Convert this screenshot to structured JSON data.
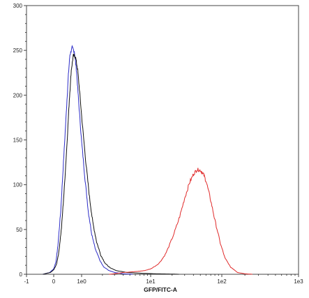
{
  "chart_data": {
    "type": "line",
    "title": "",
    "xlabel": "GFP/FITC-A",
    "ylabel": "",
    "x_scale": "biexponential",
    "xlim": [
      -1,
      1000
    ],
    "ylim": [
      0,
      300
    ],
    "grid": false,
    "x_ticks": [
      {
        "value": -1,
        "label": "-1"
      },
      {
        "value": 0,
        "label": "0"
      },
      {
        "value": 1,
        "label": "1e0"
      },
      {
        "value": 10,
        "label": "1e1"
      },
      {
        "value": 100,
        "label": "1e2"
      },
      {
        "value": 1000,
        "label": "1e3"
      }
    ],
    "y_ticks": [
      0,
      50,
      100,
      150,
      200,
      250,
      300
    ],
    "y_tick_labels": [
      "0",
      "50",
      "100",
      "150",
      "200",
      "250",
      "300"
    ],
    "series": [
      {
        "color": "#2c2cc8",
        "x": [
          -0.4,
          -0.15,
          0,
          0.08,
          0.15,
          0.25,
          0.35,
          0.45,
          0.52,
          0.58,
          0.66,
          0.74,
          0.82,
          0.9,
          1.0,
          1.12,
          1.25,
          1.4,
          1.6,
          1.85,
          2.1,
          2.5,
          3.0,
          4.0,
          5.5
        ],
        "y": [
          0,
          2,
          6,
          14,
          32,
          70,
          125,
          180,
          220,
          245,
          253,
          249,
          226,
          190,
          148,
          106,
          70,
          45,
          27,
          15,
          8,
          4,
          2,
          0.5,
          0
        ]
      },
      {
        "color": "#111111",
        "x": [
          -0.4,
          -0.12,
          0,
          0.1,
          0.18,
          0.28,
          0.38,
          0.48,
          0.56,
          0.63,
          0.7,
          0.78,
          0.86,
          0.94,
          1.04,
          1.16,
          1.3,
          1.45,
          1.65,
          1.9,
          2.2,
          2.6,
          3.2,
          4.5,
          6.0,
          8.0,
          12,
          18,
          25
        ],
        "y": [
          0,
          2,
          5,
          11,
          24,
          52,
          96,
          148,
          195,
          228,
          244,
          243,
          228,
          200,
          162,
          122,
          86,
          58,
          36,
          21,
          12,
          7,
          4,
          2,
          1.5,
          1,
          0.5,
          0.3,
          0
        ]
      },
      {
        "color": "#e02a2a",
        "x": [
          2.5,
          4,
          6,
          8,
          10,
          13,
          16,
          20,
          25,
          30,
          35,
          40,
          45,
          50,
          55,
          60,
          70,
          80,
          95,
          110,
          130,
          160,
          200,
          250
        ],
        "y": [
          0,
          2,
          3,
          4,
          6,
          12,
          22,
          40,
          62,
          85,
          102,
          112,
          117,
          116,
          112,
          104,
          82,
          60,
          35,
          18,
          8,
          2,
          0.5,
          0
        ]
      }
    ]
  }
}
